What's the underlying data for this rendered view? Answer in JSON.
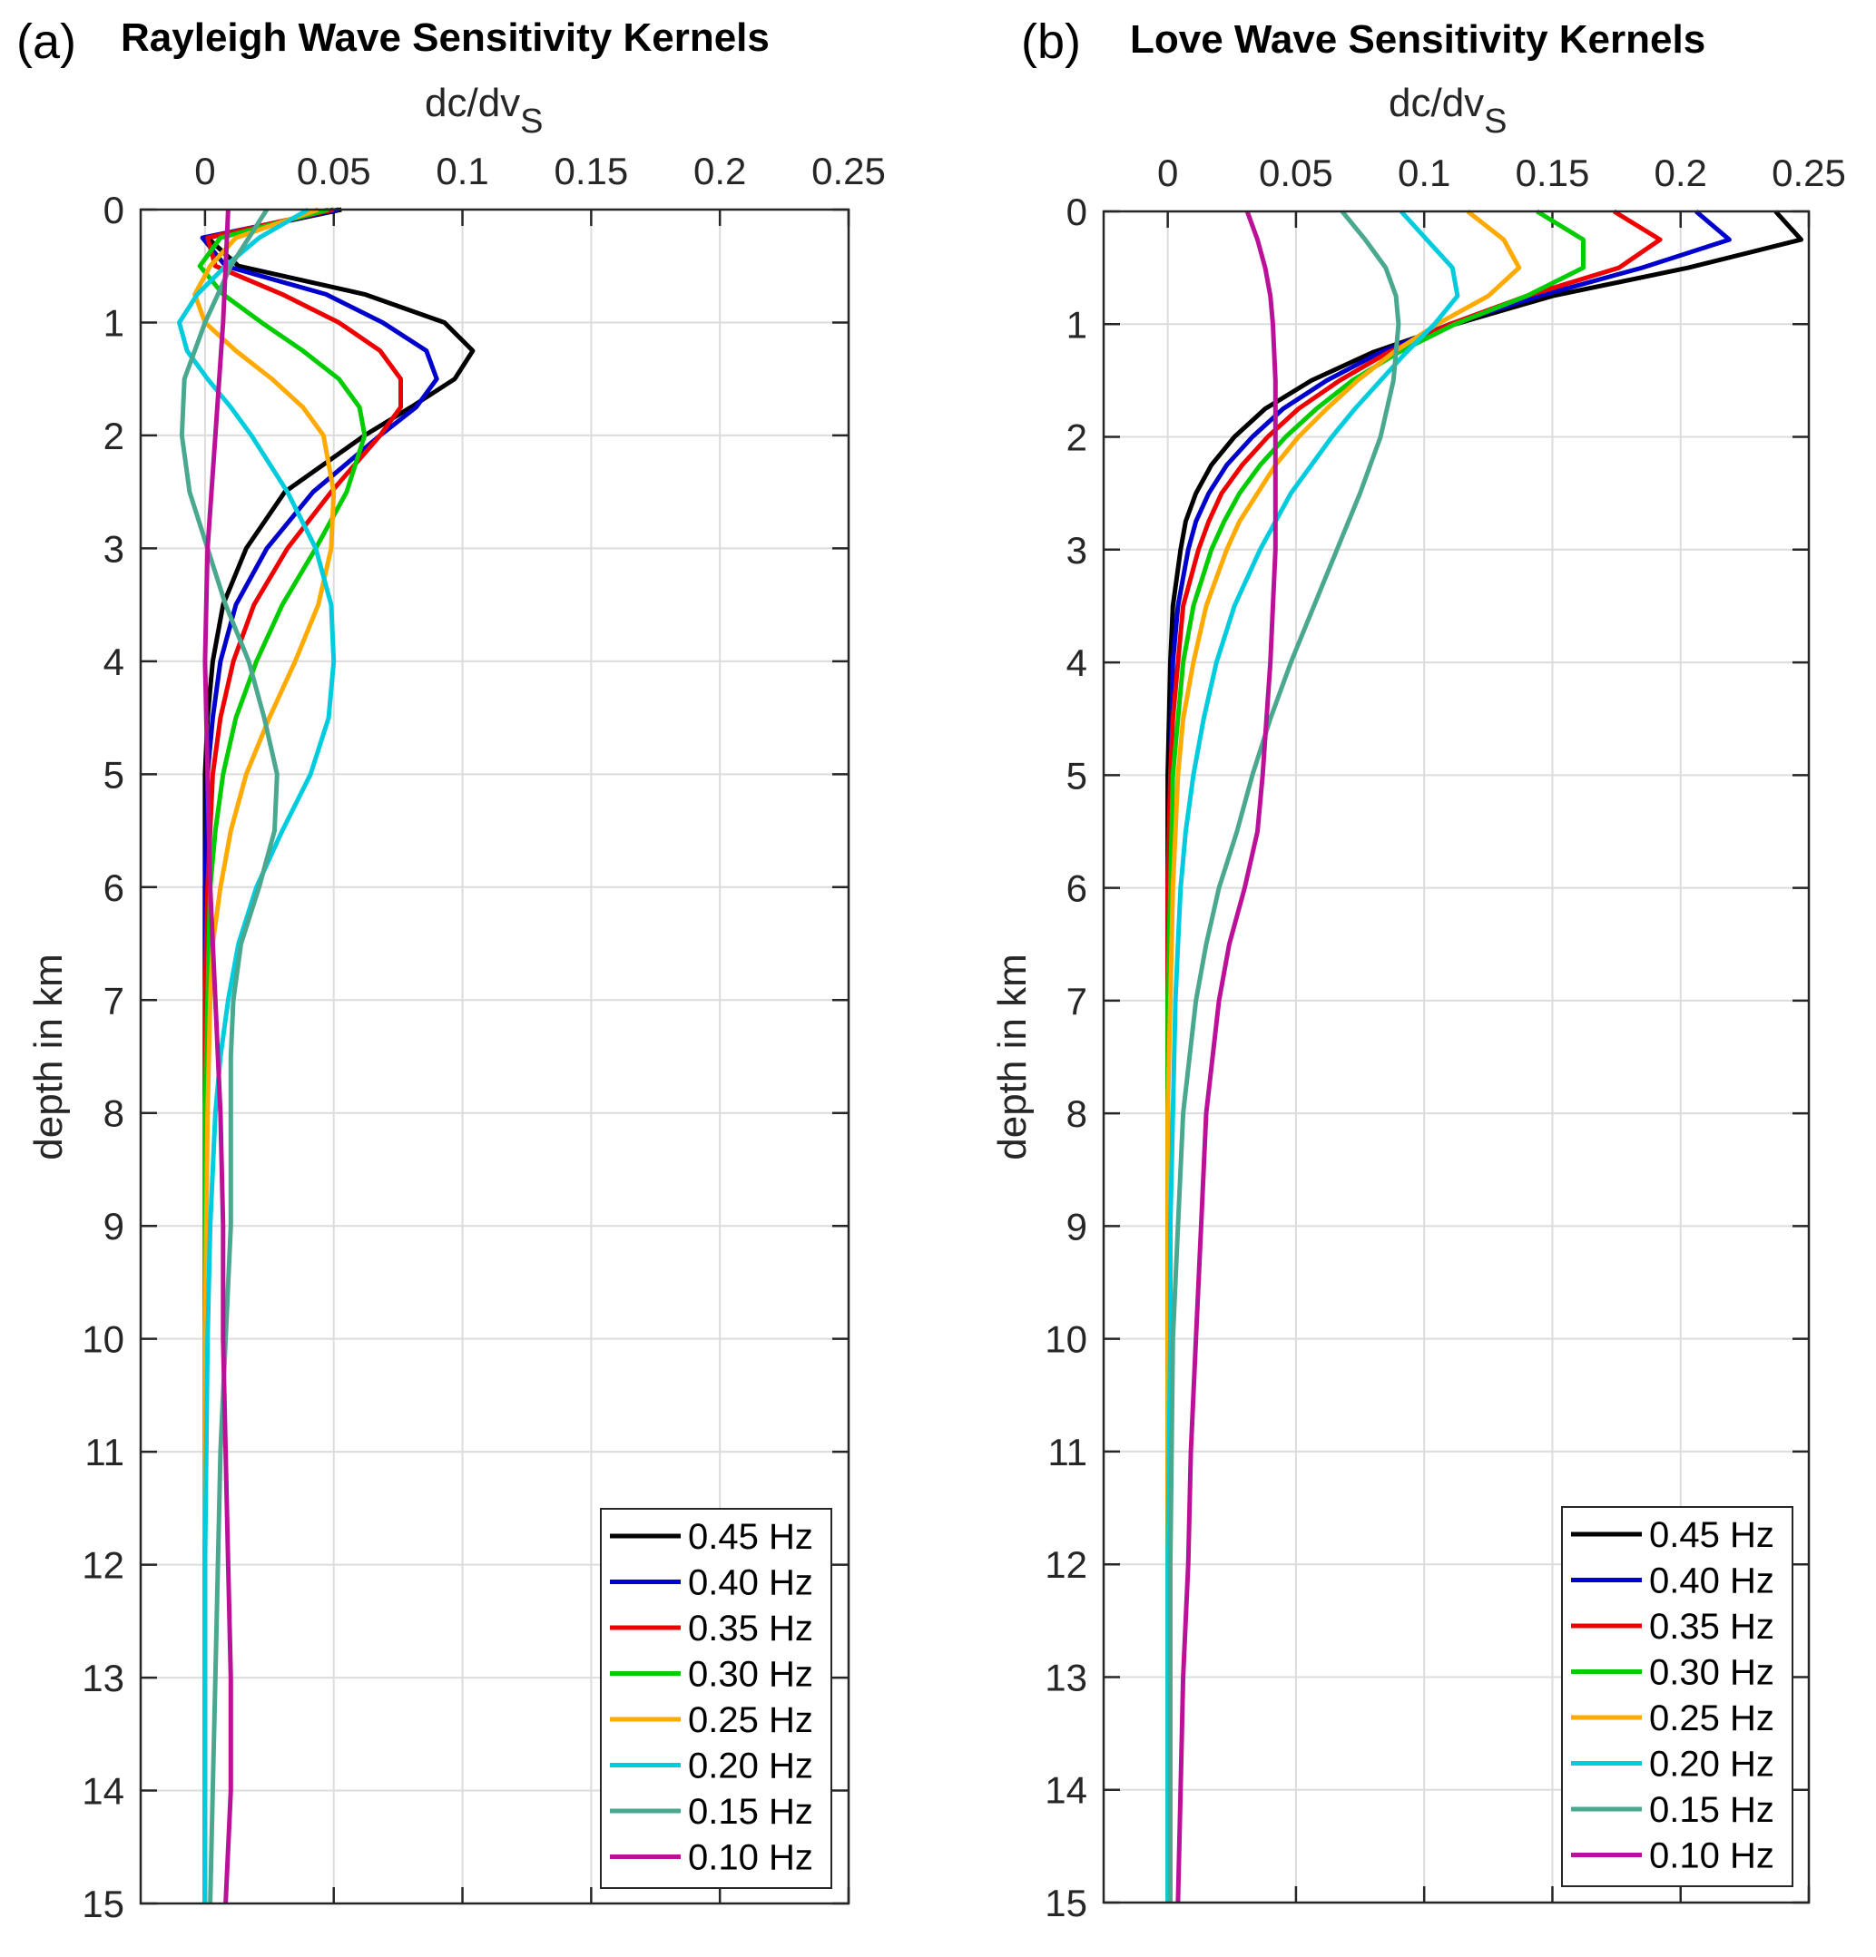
{
  "chart_data": [
    {
      "type": "line",
      "panel_letter": "(a)",
      "title": "Rayleigh Wave Sensitivity Kernels",
      "xlabel_main": "dc/dv",
      "xlabel_sub": "S",
      "ylabel": "depth in km",
      "xlim": [
        -0.025,
        0.25
      ],
      "ylim": [
        0,
        15
      ],
      "y_reversed": true,
      "x_axis_location": "top",
      "grid": true,
      "legend_location": "bottom-right",
      "xticks": [
        0,
        0.05,
        0.1,
        0.15,
        0.2,
        0.25
      ],
      "xtick_labels": [
        "0",
        "0.05",
        "0.1",
        "0.15",
        "0.2",
        "0.25"
      ],
      "yticks": [
        0,
        1,
        2,
        3,
        4,
        5,
        6,
        7,
        8,
        9,
        10,
        11,
        12,
        13,
        14,
        15
      ],
      "ytick_labels": [
        "0",
        "1",
        "2",
        "3",
        "4",
        "5",
        "6",
        "7",
        "8",
        "9",
        "10",
        "11",
        "12",
        "13",
        "14",
        "15"
      ],
      "series": [
        {
          "name": "0.45 Hz",
          "color": "#000000",
          "depth": [
            0,
            0.25,
            0.5,
            0.75,
            1.0,
            1.25,
            1.5,
            1.75,
            2.0,
            2.5,
            3.0,
            3.5,
            4.0,
            4.5,
            5,
            6,
            8,
            10,
            12,
            15
          ],
          "values": [
            0.053,
            0.001,
            0.013,
            0.062,
            0.093,
            0.104,
            0.097,
            0.08,
            0.062,
            0.031,
            0.016,
            0.007,
            0.003,
            0.001,
            0.0,
            0.0,
            0.0,
            0.0,
            0.0,
            0.0
          ]
        },
        {
          "name": "0.40 Hz",
          "color": "#0000cc",
          "depth": [
            0,
            0.25,
            0.5,
            0.75,
            1.0,
            1.25,
            1.5,
            1.75,
            2.0,
            2.5,
            3.0,
            3.5,
            4.0,
            4.5,
            5,
            6,
            8,
            10,
            12,
            15
          ],
          "values": [
            0.052,
            -0.001,
            0.008,
            0.047,
            0.069,
            0.086,
            0.09,
            0.082,
            0.068,
            0.042,
            0.024,
            0.012,
            0.006,
            0.003,
            0.001,
            0.0,
            0.0,
            0.0,
            0.0,
            0.0
          ]
        },
        {
          "name": "0.35 Hz",
          "color": "#ee0000",
          "depth": [
            0,
            0.25,
            0.5,
            0.75,
            1.0,
            1.25,
            1.5,
            1.75,
            2.0,
            2.5,
            3.0,
            3.5,
            4.0,
            4.5,
            5,
            6,
            7,
            8,
            10,
            12,
            15
          ],
          "values": [
            0.05,
            0.001,
            0.004,
            0.03,
            0.052,
            0.068,
            0.076,
            0.076,
            0.068,
            0.049,
            0.032,
            0.019,
            0.011,
            0.006,
            0.003,
            0.001,
            0.0,
            0.0,
            0.0,
            0.0,
            0.0
          ]
        },
        {
          "name": "0.30 Hz",
          "color": "#00cc00",
          "depth": [
            0,
            0.25,
            0.5,
            0.75,
            1.0,
            1.25,
            1.5,
            1.75,
            2.0,
            2.5,
            3.0,
            3.5,
            4.0,
            4.5,
            5,
            5.5,
            6,
            7,
            8,
            10,
            12,
            15
          ],
          "values": [
            0.048,
            0.006,
            -0.002,
            0.007,
            0.022,
            0.038,
            0.052,
            0.06,
            0.062,
            0.055,
            0.043,
            0.03,
            0.02,
            0.012,
            0.007,
            0.004,
            0.002,
            0.001,
            0.0,
            0.0,
            0.0,
            0.0
          ]
        },
        {
          "name": "0.25 Hz",
          "color": "#ffaa00",
          "depth": [
            0,
            0.25,
            0.5,
            0.75,
            1.0,
            1.25,
            1.5,
            1.75,
            2.0,
            2.5,
            3.0,
            3.5,
            4.0,
            4.5,
            5,
            5.5,
            6,
            6.5,
            7,
            8,
            10,
            12,
            15
          ],
          "values": [
            0.044,
            0.012,
            0.002,
            -0.004,
            0.0,
            0.012,
            0.026,
            0.038,
            0.046,
            0.05,
            0.049,
            0.044,
            0.035,
            0.025,
            0.016,
            0.01,
            0.006,
            0.003,
            0.002,
            0.001,
            0.0,
            0.0,
            0.0
          ]
        },
        {
          "name": "0.20 Hz",
          "color": "#00ccdd",
          "depth": [
            0,
            0.25,
            0.5,
            0.75,
            1.0,
            1.25,
            1.5,
            1.75,
            2.0,
            2.5,
            3.0,
            3.5,
            4.0,
            4.5,
            5,
            5.5,
            6,
            6.5,
            7,
            7.5,
            8,
            9,
            10,
            12,
            15
          ],
          "values": [
            0.04,
            0.021,
            0.008,
            -0.003,
            -0.01,
            -0.007,
            0.001,
            0.01,
            0.018,
            0.032,
            0.043,
            0.049,
            0.05,
            0.048,
            0.041,
            0.03,
            0.02,
            0.013,
            0.009,
            0.006,
            0.004,
            0.002,
            0.001,
            0.0,
            0.0
          ]
        },
        {
          "name": "0.15 Hz",
          "color": "#4aa88f",
          "depth": [
            0,
            0.5,
            1.0,
            1.5,
            2.0,
            2.5,
            3.0,
            3.5,
            4.0,
            4.5,
            5,
            5.5,
            6,
            6.5,
            7,
            7.5,
            8,
            9,
            10,
            11,
            12,
            13,
            14,
            15
          ],
          "values": [
            0.024,
            0.01,
            0.0,
            -0.008,
            -0.009,
            -0.006,
            0.001,
            0.008,
            0.017,
            0.023,
            0.028,
            0.027,
            0.021,
            0.014,
            0.011,
            0.01,
            0.01,
            0.01,
            0.008,
            0.006,
            0.005,
            0.004,
            0.003,
            0.002
          ]
        },
        {
          "name": "0.10 Hz",
          "color": "#bb1199",
          "depth": [
            0,
            1,
            2,
            3,
            4,
            5,
            6,
            7,
            8,
            9,
            10,
            11,
            12,
            13,
            14,
            15
          ],
          "values": [
            0.009,
            0.007,
            0.004,
            0.001,
            0.0,
            0.001,
            0.002,
            0.004,
            0.006,
            0.007,
            0.007,
            0.008,
            0.009,
            0.01,
            0.01,
            0.008
          ]
        }
      ]
    },
    {
      "type": "line",
      "panel_letter": "(b)",
      "title": "Love Wave Sensitivity Kernels",
      "xlabel_main": "dc/dv",
      "xlabel_sub": "S",
      "ylabel": "depth in km",
      "xlim": [
        -0.025,
        0.25
      ],
      "ylim": [
        0,
        15
      ],
      "y_reversed": true,
      "x_axis_location": "top",
      "grid": true,
      "legend_location": "bottom-right",
      "xticks": [
        0,
        0.05,
        0.1,
        0.15,
        0.2,
        0.25
      ],
      "xtick_labels": [
        "0",
        "0.05",
        "0.1",
        "0.15",
        "0.2",
        "0.25"
      ],
      "yticks": [
        0,
        1,
        2,
        3,
        4,
        5,
        6,
        7,
        8,
        9,
        10,
        11,
        12,
        13,
        14,
        15
      ],
      "ytick_labels": [
        "0",
        "1",
        "2",
        "3",
        "4",
        "5",
        "6",
        "7",
        "8",
        "9",
        "10",
        "11",
        "12",
        "13",
        "14",
        "15"
      ],
      "series": [
        {
          "name": "0.45 Hz",
          "color": "#000000",
          "depth": [
            0,
            0.25,
            0.5,
            0.75,
            1.0,
            1.25,
            1.5,
            1.75,
            2.0,
            2.25,
            2.5,
            2.75,
            3.0,
            3.5,
            4.0,
            5,
            6,
            8,
            10,
            15
          ],
          "values": [
            0.237,
            0.247,
            0.203,
            0.15,
            0.112,
            0.08,
            0.056,
            0.038,
            0.026,
            0.017,
            0.011,
            0.007,
            0.005,
            0.002,
            0.001,
            0.0,
            0.0,
            0.0,
            0.0,
            0.0
          ]
        },
        {
          "name": "0.40 Hz",
          "color": "#0000cc",
          "depth": [
            0,
            0.25,
            0.5,
            0.75,
            1.0,
            1.25,
            1.5,
            1.75,
            2.0,
            2.25,
            2.5,
            2.75,
            3.0,
            3.5,
            4.0,
            5,
            6,
            8,
            10,
            15
          ],
          "values": [
            0.206,
            0.219,
            0.185,
            0.145,
            0.11,
            0.083,
            0.062,
            0.045,
            0.033,
            0.023,
            0.016,
            0.011,
            0.008,
            0.004,
            0.002,
            0.001,
            0.0,
            0.0,
            0.0,
            0.0
          ]
        },
        {
          "name": "0.35 Hz",
          "color": "#ee0000",
          "depth": [
            0,
            0.25,
            0.5,
            0.75,
            1.0,
            1.25,
            1.5,
            1.75,
            2.0,
            2.25,
            2.5,
            2.75,
            3.0,
            3.5,
            4.0,
            4.5,
            5,
            6,
            8,
            10,
            15
          ],
          "values": [
            0.174,
            0.192,
            0.176,
            0.14,
            0.11,
            0.086,
            0.067,
            0.051,
            0.039,
            0.029,
            0.021,
            0.016,
            0.012,
            0.006,
            0.004,
            0.002,
            0.001,
            0.0,
            0.0,
            0.0,
            0.0
          ]
        },
        {
          "name": "0.30 Hz",
          "color": "#00cc00",
          "depth": [
            0,
            0.25,
            0.5,
            0.75,
            1.0,
            1.25,
            1.5,
            1.75,
            2.0,
            2.25,
            2.5,
            2.75,
            3.0,
            3.5,
            4.0,
            4.5,
            5,
            6,
            7,
            8,
            10,
            15
          ],
          "values": [
            0.144,
            0.162,
            0.162,
            0.14,
            0.112,
            0.09,
            0.072,
            0.058,
            0.046,
            0.036,
            0.028,
            0.022,
            0.017,
            0.01,
            0.006,
            0.004,
            0.002,
            0.001,
            0.0,
            0.0,
            0.0,
            0.0
          ]
        },
        {
          "name": "0.25 Hz",
          "color": "#ffaa00",
          "depth": [
            0,
            0.25,
            0.5,
            0.75,
            1.0,
            1.25,
            1.5,
            1.75,
            2.0,
            2.25,
            2.5,
            2.75,
            3.0,
            3.5,
            4.0,
            4.5,
            5,
            5.5,
            6,
            7,
            8,
            10,
            15
          ],
          "values": [
            0.117,
            0.131,
            0.137,
            0.125,
            0.105,
            0.088,
            0.074,
            0.062,
            0.051,
            0.042,
            0.035,
            0.028,
            0.023,
            0.015,
            0.01,
            0.006,
            0.004,
            0.003,
            0.002,
            0.001,
            0.0,
            0.0,
            0.0
          ]
        },
        {
          "name": "0.20 Hz",
          "color": "#00ccdd",
          "depth": [
            0,
            0.25,
            0.5,
            0.75,
            1.0,
            1.25,
            1.5,
            1.75,
            2.0,
            2.5,
            3.0,
            3.5,
            4.0,
            4.5,
            5,
            5.5,
            6,
            6.5,
            7,
            8,
            9,
            10,
            12,
            15
          ],
          "values": [
            0.091,
            0.101,
            0.111,
            0.113,
            0.104,
            0.093,
            0.083,
            0.073,
            0.064,
            0.048,
            0.036,
            0.026,
            0.019,
            0.014,
            0.01,
            0.007,
            0.005,
            0.004,
            0.003,
            0.002,
            0.001,
            0.001,
            0.0,
            0.0
          ]
        },
        {
          "name": "0.15 Hz",
          "color": "#4aa88f",
          "depth": [
            0,
            0.25,
            0.5,
            0.75,
            1.0,
            1.5,
            2.0,
            2.5,
            3.0,
            3.5,
            4.0,
            4.5,
            5,
            5.5,
            6,
            6.5,
            7,
            8,
            9,
            10,
            12,
            15
          ],
          "values": [
            0.068,
            0.077,
            0.085,
            0.089,
            0.09,
            0.088,
            0.083,
            0.075,
            0.066,
            0.057,
            0.048,
            0.04,
            0.033,
            0.027,
            0.02,
            0.015,
            0.011,
            0.006,
            0.004,
            0.002,
            0.001,
            0.001
          ]
        },
        {
          "name": "0.10 Hz",
          "color": "#bb1199",
          "depth": [
            0,
            0.25,
            0.5,
            0.75,
            1.0,
            1.5,
            2.0,
            3.0,
            4.0,
            5.0,
            5.5,
            6.0,
            6.5,
            7.0,
            8.0,
            9.0,
            10,
            11,
            12,
            13,
            14,
            15
          ],
          "values": [
            0.031,
            0.035,
            0.038,
            0.04,
            0.041,
            0.042,
            0.042,
            0.042,
            0.04,
            0.037,
            0.035,
            0.03,
            0.024,
            0.02,
            0.015,
            0.013,
            0.011,
            0.009,
            0.008,
            0.006,
            0.005,
            0.004
          ]
        }
      ]
    }
  ]
}
